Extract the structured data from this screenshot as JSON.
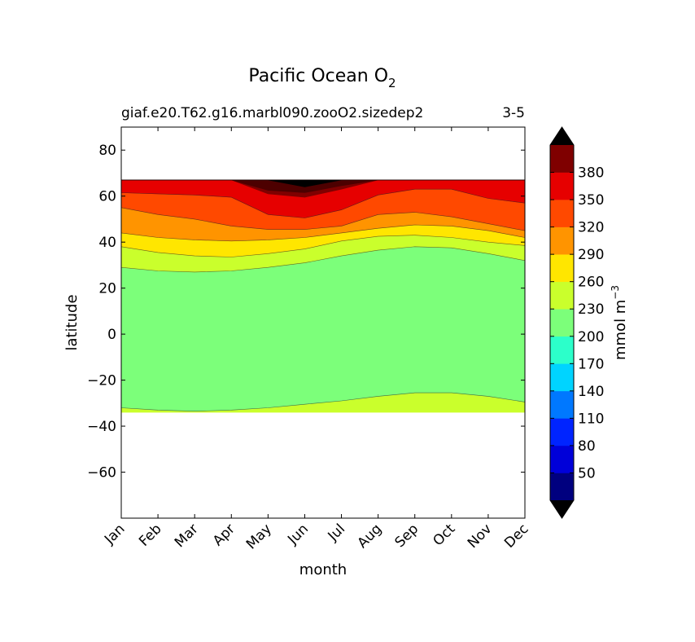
{
  "chart_data": {
    "type": "contour",
    "title": "Pacific Ocean O",
    "title_subscript": "2",
    "subtitle_left": "giaf.e20.T62.g16.marbl090.zooO2.sizedep2",
    "subtitle_right": "3-5",
    "xlabel": "month",
    "ylabel": "latitude",
    "x_ticks": [
      "Jan",
      "Feb",
      "Mar",
      "Apr",
      "May",
      "Jun",
      "Jul",
      "Aug",
      "Sep",
      "Oct",
      "Nov",
      "Dec"
    ],
    "xlim": [
      0,
      11
    ],
    "ylim": [
      -80,
      90
    ],
    "y_ticks": [
      80,
      60,
      40,
      20,
      0,
      -20,
      -40,
      -60
    ],
    "y_tick_labels": [
      "80",
      "60",
      "40",
      "20",
      "0",
      "−20",
      "−40",
      "−60"
    ],
    "data_lat_range": [
      -34,
      67
    ],
    "contour_levels": [
      20,
      50,
      80,
      110,
      140,
      170,
      200,
      230,
      260,
      290,
      320,
      350,
      380,
      410
    ],
    "band_colors": [
      "#00007f",
      "#0000d9",
      "#0024ff",
      "#0078ff",
      "#00d4ff",
      "#2cffca",
      "#7cff7a",
      "#caff2c",
      "#ffe600",
      "#ff9400",
      "#ff4900",
      "#e60000",
      "#7f0000"
    ],
    "extend_low_color": "#000000",
    "extend_high_color": "#000000",
    "fill_boundaries": {
      "lower_230": [
        -32,
        -33,
        -33.5,
        -33,
        -32,
        -30.5,
        -29,
        -27,
        -25.5,
        -25.5,
        -27,
        -29.5
      ],
      "upper_230": [
        29,
        27.5,
        27,
        27.5,
        29,
        31,
        34,
        36.5,
        38,
        37.5,
        35,
        32
      ],
      "upper_260": [
        38,
        35.5,
        34,
        33.5,
        35,
        37,
        40.5,
        42.5,
        43,
        42,
        40,
        38.5
      ],
      "upper_290": [
        44,
        42,
        41,
        40.5,
        41,
        42,
        44,
        46,
        47.5,
        47,
        45,
        42
      ],
      "upper_320": [
        55,
        52,
        50,
        47,
        45.5,
        45.5,
        47,
        52,
        53,
        51,
        48,
        45
      ],
      "upper_350": [
        61.5,
        61,
        60.5,
        59.5,
        52,
        50.5,
        54,
        60.5,
        63,
        63,
        59,
        57
      ],
      "upper_380_lat": [
        67,
        67,
        67,
        67,
        61,
        59.5,
        63,
        67,
        67,
        67,
        67,
        67
      ],
      "dark_red_patch_lat": [
        67,
        67,
        67,
        67,
        62.5,
        61.5,
        64.5,
        67,
        67,
        67,
        67,
        67
      ],
      "black_patch_lat": [
        67,
        67,
        67,
        67,
        67,
        64,
        67,
        67,
        67,
        67,
        67,
        67
      ]
    },
    "colorbar": {
      "label": "mmol m",
      "label_exponent": "−3",
      "tick_labels": [
        "50",
        "80",
        "110",
        "140",
        "170",
        "200",
        "230",
        "260",
        "290",
        "320",
        "350",
        "380"
      ],
      "extend": "both"
    }
  }
}
